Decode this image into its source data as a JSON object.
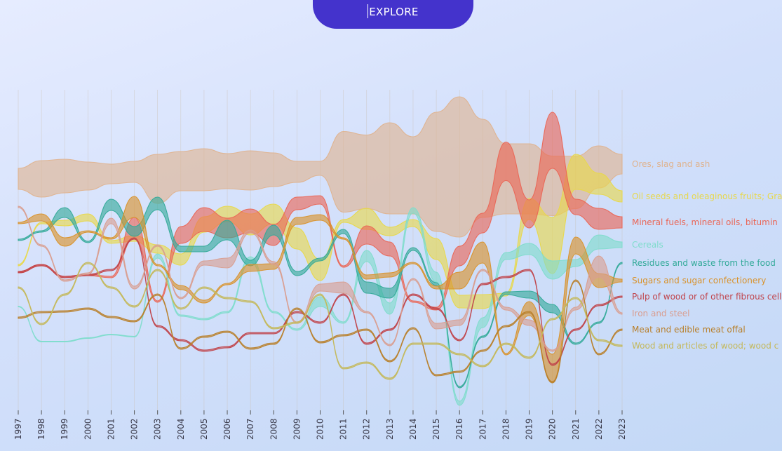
{
  "explore_button": {
    "label": "EXPLORE"
  },
  "chart_data": {
    "type": "area",
    "subtype": "streamgraph-bump",
    "title": "",
    "xlabel": "",
    "ylabel": "",
    "x": [
      1997,
      1998,
      1999,
      2000,
      2001,
      2002,
      2003,
      2004,
      2005,
      2006,
      2007,
      2008,
      2009,
      2010,
      2011,
      2012,
      2013,
      2014,
      2015,
      2016,
      2017,
      2018,
      2019,
      2020,
      2021,
      2022,
      2023
    ],
    "grid": "vertical",
    "legend": "right",
    "series": [
      {
        "name": "Ores, slag and ash",
        "color": "#dfb38f",
        "center": [
          255,
          255,
          251,
          251,
          248,
          245,
          255,
          244,
          242,
          244,
          243,
          242,
          245,
          240,
          245,
          245,
          240,
          250,
          245,
          238,
          240,
          255,
          255,
          265,
          260,
          238,
          234
        ],
        "thickness": [
          30,
          52,
          48,
          40,
          28,
          30,
          70,
          56,
          60,
          50,
          56,
          48,
          30,
          20,
          115,
          105,
          130,
          110,
          170,
          200,
          140,
          100,
          100,
          85,
          75,
          60,
          28
        ]
      },
      {
        "name": "Oil seeds and oleaginous fruits; Grains, seeds, fruit",
        "color": "#e8d84a",
        "center": [
          378,
          318,
          318,
          310,
          345,
          340,
          355,
          370,
          320,
          305,
          320,
          305,
          340,
          385,
          315,
          312,
          330,
          318,
          355,
          430,
          430,
          420,
          298,
          350,
          245,
          262,
          280
        ],
        "thickness": [
          2,
          2,
          8,
          10,
          4,
          8,
          12,
          16,
          22,
          22,
          30,
          28,
          30,
          30,
          4,
          30,
          12,
          10,
          30,
          18,
          20,
          4,
          30,
          80,
          50,
          30,
          16
        ]
      },
      {
        "name": "Mineral fuels, mineral oils, bitumin",
        "color": "#ea6656",
        "center": [
          388,
          378,
          395,
          392,
          395,
          325,
          430,
          335,
          313,
          325,
          315,
          335,
          290,
          285,
          380,
          335,
          355,
          430,
          440,
          365,
          318,
          230,
          305,
          200,
          295,
          312,
          317
        ],
        "thickness": [
          2,
          2,
          2,
          2,
          2,
          30,
          2,
          24,
          34,
          28,
          34,
          30,
          18,
          12,
          2,
          26,
          20,
          2,
          4,
          28,
          28,
          55,
          40,
          80,
          22,
          30,
          16
        ]
      },
      {
        "name": "Cereals",
        "color": "#7fdccc",
        "center": [
          437,
          487,
          487,
          482,
          477,
          480,
          365,
          450,
          455,
          445,
          370,
          445,
          470,
          430,
          460,
          365,
          440,
          300,
          395,
          575,
          460,
          365,
          355,
          385,
          375,
          345,
          349
        ],
        "thickness": [
          1,
          1,
          1,
          1,
          1,
          1,
          6,
          2,
          2,
          2,
          8,
          2,
          2,
          14,
          2,
          16,
          16,
          8,
          14,
          6,
          14,
          10,
          16,
          26,
          10,
          20,
          8
        ]
      },
      {
        "name": "Residues and waste from the food",
        "color": "#33aa99",
        "center": [
          342,
          330,
          303,
          345,
          292,
          330,
          290,
          355,
          355,
          328,
          375,
          328,
          390,
          370,
          330,
          410,
          418,
          355,
          405,
          552,
          480,
          418,
          420,
          440,
          490,
          460,
          375
        ],
        "thickness": [
          2,
          2,
          14,
          2,
          16,
          14,
          18,
          8,
          8,
          28,
          8,
          14,
          6,
          4,
          6,
          16,
          14,
          4,
          4,
          2,
          2,
          4,
          10,
          12,
          2,
          2,
          2
        ]
      },
      {
        "name": "Sugars and sugar confectionery",
        "color": "#d9922a",
        "center": [
          318,
          310,
          345,
          330,
          340,
          295,
          378,
          410,
          430,
          405,
          382,
          380,
          315,
          310,
          340,
          395,
          392,
          375,
          410,
          400,
          360,
          505,
          440,
          525,
          350,
          400,
          400
        ],
        "thickness": [
          2,
          10,
          12,
          2,
          2,
          30,
          2,
          6,
          4,
          2,
          10,
          8,
          10,
          8,
          2,
          6,
          6,
          2,
          4,
          24,
          30,
          2,
          20,
          40,
          24,
          20,
          4
        ]
      },
      {
        "name": "Pulp of wood or of other fibrous cellulosic material",
        "color": "#c0434a",
        "center": [
          388,
          378,
          395,
          392,
          385,
          340,
          465,
          485,
          500,
          495,
          475,
          475,
          445,
          460,
          420,
          490,
          470,
          420,
          440,
          485,
          405,
          395,
          385,
          520,
          470,
          435,
          423
        ],
        "thickness": [
          2,
          2,
          2,
          2,
          2,
          2,
          2,
          2,
          2,
          2,
          2,
          2,
          2,
          2,
          2,
          2,
          2,
          2,
          2,
          2,
          2,
          2,
          2,
          2,
          2,
          2,
          2
        ]
      },
      {
        "name": "Iron and steel",
        "color": "#d99e90",
        "center": [
          295,
          350,
          400,
          390,
          315,
          410,
          350,
          425,
          375,
          375,
          330,
          375,
          460,
          410,
          410,
          445,
          492,
          398,
          465,
          460,
          385,
          440,
          460,
          500,
          440,
          380,
          447
        ],
        "thickness": [
          2,
          2,
          2,
          2,
          8,
          4,
          2,
          2,
          6,
          14,
          4,
          4,
          2,
          10,
          16,
          2,
          2,
          2,
          8,
          8,
          2,
          4,
          8,
          2,
          4,
          30,
          2
        ]
      },
      {
        "name": "Meat and edible meat offal",
        "color": "#b87f2a",
        "center": [
          453,
          445,
          444,
          440,
          452,
          458,
          420,
          497,
          480,
          473,
          497,
          490,
          440,
          488,
          478,
          470,
          515,
          468,
          535,
          530,
          500,
          465,
          445,
          545,
          400,
          505,
          470
        ],
        "thickness": [
          2,
          2,
          2,
          2,
          2,
          2,
          2,
          2,
          2,
          2,
          2,
          2,
          2,
          2,
          2,
          2,
          2,
          2,
          2,
          2,
          2,
          2,
          2,
          2,
          2,
          2,
          2
        ]
      },
      {
        "name": "Wood and articles of wood; wood c",
        "color": "#c4b85a",
        "center": [
          410,
          462,
          420,
          375,
          410,
          437,
          385,
          440,
          410,
          425,
          430,
          468,
          460,
          420,
          525,
          517,
          540,
          490,
          490,
          505,
          522,
          490,
          510,
          455,
          425,
          485,
          493
        ],
        "thickness": [
          2,
          2,
          2,
          2,
          2,
          2,
          2,
          2,
          2,
          2,
          2,
          2,
          2,
          2,
          2,
          2,
          2,
          2,
          2,
          2,
          2,
          2,
          2,
          2,
          2,
          2,
          2
        ]
      }
    ]
  }
}
